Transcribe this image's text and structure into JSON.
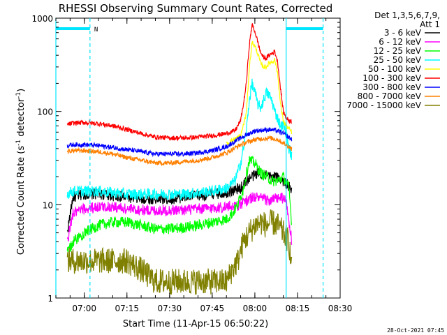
{
  "chart_data": {
    "type": "line",
    "title": "RHESSI Observing Summary Count Rates, Corrected",
    "xlabel": "Start Time (11-Apr-15 06:50:22)",
    "ylabel_main": "Corrected Count Rate (s",
    "ylabel_sup1": "-1",
    "ylabel_mid": " detector",
    "ylabel_sup2": "-1",
    "ylabel_end": ")",
    "x_range_min": [
      0,
      100
    ],
    "x_ticks": [
      {
        "min": 10,
        "label": "07:00"
      },
      {
        "min": 25,
        "label": "07:15"
      },
      {
        "min": 40,
        "label": "07:30"
      },
      {
        "min": 55,
        "label": "07:45"
      },
      {
        "min": 70,
        "label": "08:00"
      },
      {
        "min": 85,
        "label": "08:15"
      },
      {
        "min": 100,
        "label": "08:30"
      }
    ],
    "y_scale": "log",
    "y_range": [
      1,
      1000
    ],
    "y_ticks": [
      {
        "value": 1,
        "label": "1"
      },
      {
        "value": 10,
        "label": "10"
      },
      {
        "value": 100,
        "label": "100"
      },
      {
        "value": 1000,
        "label": "1000"
      }
    ],
    "legend_header": [
      "Det 1,3,5,6,7,9,",
      "Att 1"
    ],
    "legend_position": "top-right",
    "series": [
      {
        "name": "3 - 6 keV",
        "color": "#000000",
        "x": [
          4,
          6,
          10,
          15,
          20,
          25,
          30,
          35,
          40,
          45,
          50,
          55,
          60,
          65,
          67,
          69,
          71,
          73,
          75,
          77,
          79,
          81,
          83
        ],
        "y": [
          5,
          12,
          13,
          13,
          12.5,
          12,
          11.5,
          11.5,
          11.5,
          12,
          12.5,
          13,
          13.5,
          15,
          18,
          20,
          22,
          21,
          20,
          20,
          19,
          17,
          14
        ]
      },
      {
        "name": "6 - 12 keV",
        "color": "#ff00ff",
        "x": [
          4,
          6,
          10,
          15,
          20,
          25,
          30,
          35,
          40,
          45,
          50,
          55,
          60,
          65,
          67,
          69,
          71,
          73,
          75,
          77,
          79,
          81,
          83
        ],
        "y": [
          4,
          8,
          9,
          9.5,
          9.5,
          9,
          8.8,
          8.7,
          8.7,
          8.8,
          9,
          9.2,
          9.5,
          10,
          11,
          12,
          12,
          11.5,
          11,
          11.5,
          12,
          11,
          4
        ]
      },
      {
        "name": "12 - 25 keV",
        "color": "#00ff00",
        "x": [
          4,
          6,
          10,
          15,
          20,
          25,
          30,
          35,
          40,
          45,
          50,
          55,
          60,
          62,
          64,
          66,
          68,
          70,
          72,
          74,
          76,
          78,
          80,
          82,
          83
        ],
        "y": [
          3,
          4,
          5,
          6,
          6.5,
          6.5,
          6,
          5.5,
          5.5,
          5.7,
          6,
          6.5,
          7,
          8,
          10,
          15,
          30,
          28,
          22,
          20,
          18,
          18,
          20,
          15,
          6
        ]
      },
      {
        "name": "25 - 50 keV",
        "color": "#00ffff",
        "x": [
          4,
          6,
          10,
          15,
          20,
          25,
          30,
          35,
          40,
          45,
          50,
          55,
          60,
          63,
          65,
          67,
          68,
          69,
          70,
          71,
          72,
          73,
          74,
          75,
          76,
          77,
          78,
          79,
          80,
          81,
          82,
          83
        ],
        "y": [
          13,
          14,
          14,
          14,
          13.5,
          13,
          13,
          13,
          13,
          13,
          13.5,
          14,
          15,
          18,
          28,
          60,
          130,
          200,
          160,
          120,
          110,
          130,
          160,
          150,
          130,
          100,
          85,
          70,
          70,
          60,
          40,
          33
        ]
      },
      {
        "name": "50 - 100 keV",
        "color": "#ffff00",
        "x": [
          60,
          65,
          67,
          68,
          69,
          70,
          71,
          72,
          73,
          74,
          75,
          76,
          77,
          78,
          79,
          80,
          81,
          82,
          83
        ],
        "y": [
          45,
          55,
          95,
          280,
          550,
          500,
          420,
          330,
          300,
          300,
          330,
          340,
          360,
          260,
          120,
          80,
          70,
          65,
          60
        ]
      },
      {
        "name": "100 - 300 keV",
        "color": "#ff0000",
        "x": [
          4,
          6,
          10,
          15,
          20,
          25,
          30,
          35,
          40,
          45,
          50,
          55,
          60,
          63,
          65,
          66,
          67,
          68,
          69,
          70,
          71,
          72,
          73,
          74,
          75,
          76,
          77,
          78,
          79,
          80,
          81,
          82,
          83
        ],
        "y": [
          72,
          75,
          76,
          74,
          70,
          64,
          58,
          53,
          52,
          52,
          53,
          55,
          58,
          62,
          80,
          120,
          200,
          500,
          850,
          720,
          560,
          430,
          380,
          370,
          400,
          420,
          440,
          340,
          180,
          100,
          85,
          80,
          78
        ]
      },
      {
        "name": "300 - 800 keV",
        "color": "#0000ff",
        "x": [
          4,
          6,
          10,
          15,
          20,
          25,
          30,
          35,
          40,
          45,
          50,
          55,
          60,
          65,
          70,
          75,
          78,
          80,
          83
        ],
        "y": [
          43,
          44,
          44,
          43,
          41,
          39,
          37,
          35,
          35,
          35,
          36,
          38,
          42,
          52,
          62,
          64,
          62,
          58,
          50
        ]
      },
      {
        "name": "800 - 7000 keV",
        "color": "#ff8000",
        "x": [
          4,
          6,
          10,
          15,
          20,
          25,
          30,
          35,
          40,
          45,
          50,
          55,
          60,
          65,
          70,
          75,
          78,
          80,
          83
        ],
        "y": [
          37,
          38,
          38,
          37,
          35,
          32,
          30,
          28,
          28,
          29,
          30,
          32,
          36,
          44,
          50,
          52,
          50,
          46,
          40
        ]
      },
      {
        "name": "7000 - 15000 keV",
        "color": "#808000",
        "x": [
          4,
          6,
          10,
          15,
          20,
          25,
          30,
          35,
          40,
          45,
          50,
          55,
          60,
          62,
          64,
          66,
          68,
          70,
          72,
          74,
          76,
          78,
          80,
          82,
          83
        ],
        "y": [
          2.5,
          2.5,
          2.5,
          2.5,
          2.5,
          2.5,
          2,
          1.5,
          1.5,
          1.5,
          1.5,
          1.5,
          1.5,
          2,
          2.5,
          4,
          5,
          6,
          6.5,
          6,
          6.5,
          6,
          5,
          4,
          2
        ]
      }
    ],
    "saa_intervals": [
      {
        "start_min": 0,
        "end_min": 12,
        "label": "N"
      },
      {
        "start_min": 81,
        "end_min": 94
      }
    ],
    "vertical_markers_min": [
      0,
      12,
      81,
      94
    ],
    "footer_date": "28-Oct-2021 07:45"
  }
}
